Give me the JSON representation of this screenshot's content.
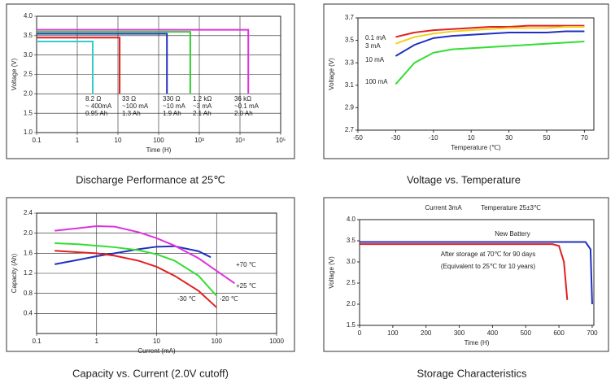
{
  "chart_data": [
    {
      "type": "line",
      "title": "Discharge Performance at 25℃",
      "xlabel": "Time (H)",
      "ylabel": "Voltage (V)",
      "xlog": true,
      "grid": true,
      "xlim": [
        0.1,
        100000
      ],
      "xticks": [
        0.1,
        1,
        10,
        100,
        {
          "value": 1000,
          "label": "10³"
        },
        {
          "value": 10000,
          "label": "10⁴"
        },
        {
          "value": 100000,
          "label": "10⁵"
        }
      ],
      "ylim": [
        1,
        4
      ],
      "yticks": [
        {
          "value": 1,
          "label": "1.0"
        },
        1.5,
        {
          "value": 2,
          "label": "2.0"
        },
        2.5,
        {
          "value": 3,
          "label": "3.0"
        },
        3.5,
        {
          "value": 4,
          "label": "4.0"
        }
      ],
      "series": [
        {
          "color": "#33cccc",
          "x": [
            0.1,
            2.4,
            2.4
          ],
          "values": [
            3.35,
            3.35,
            2.0
          ]
        },
        {
          "color": "#e02020",
          "x": [
            0.1,
            11,
            11
          ],
          "values": [
            3.45,
            3.45,
            2.0
          ]
        },
        {
          "color": "#2030c0",
          "x": [
            0.1,
            160,
            160
          ],
          "values": [
            3.55,
            3.55,
            2.0
          ]
        },
        {
          "color": "#33cc33",
          "x": [
            0.1,
            600,
            600
          ],
          "values": [
            3.6,
            3.6,
            2.0
          ]
        },
        {
          "color": "#dd33dd",
          "x": [
            0.1,
            16000,
            16000
          ],
          "values": [
            3.65,
            3.65,
            2.0
          ]
        }
      ],
      "annotations": [
        [
          "8.2 Ω",
          "~ 400mA",
          "0.95 Ah"
        ],
        [
          "33 Ω",
          "~100 mA",
          "1.3 Ah"
        ],
        [
          "330 Ω",
          "~10 mA",
          "1.9 Ah"
        ],
        [
          "1.2 kΩ",
          "~3 mA",
          "2.1 Ah"
        ],
        [
          "36 kΩ",
          "~0.1 mA",
          "2.0 Ah"
        ]
      ]
    },
    {
      "type": "line",
      "title": "Voltage vs. Temperature",
      "xlabel": "Temperature (℃)",
      "ylabel": "Voltage (V)",
      "grid": false,
      "xlim": [
        -50,
        75
      ],
      "xticks": [
        -50,
        -30,
        -10,
        10,
        30,
        50,
        70
      ],
      "ylim": [
        2.7,
        3.7
      ],
      "yticks": [
        2.7,
        2.9,
        3.1,
        3.3,
        3.5,
        3.7
      ],
      "x": [
        -30,
        -20,
        -10,
        0,
        10,
        20,
        30,
        40,
        50,
        60,
        70
      ],
      "series": [
        {
          "name": "0.1 mA",
          "color": "#e02020",
          "values": [
            3.53,
            3.57,
            3.59,
            3.6,
            3.61,
            3.62,
            3.62,
            3.63,
            3.63,
            3.63,
            3.63
          ]
        },
        {
          "name": "3 mA",
          "color": "#f0d020",
          "values": [
            3.47,
            3.53,
            3.56,
            3.58,
            3.59,
            3.6,
            3.61,
            3.61,
            3.61,
            3.62,
            3.62
          ]
        },
        {
          "name": "10 mA",
          "color": "#2030c0",
          "values": [
            3.36,
            3.46,
            3.52,
            3.54,
            3.55,
            3.56,
            3.57,
            3.57,
            3.57,
            3.58,
            3.58
          ]
        },
        {
          "name": "100 mA",
          "color": "#33dd33",
          "values": [
            3.11,
            3.3,
            3.39,
            3.42,
            3.43,
            3.44,
            3.45,
            3.46,
            3.47,
            3.48,
            3.49
          ]
        }
      ]
    },
    {
      "type": "line",
      "title": "Capacity vs. Current (2.0V cutoff)",
      "xlabel": "Current (mA)",
      "ylabel": "Capacity (Ah)",
      "xlog": true,
      "grid": true,
      "xlim": [
        0.1,
        1000
      ],
      "xticks": [
        0.1,
        1,
        10,
        100,
        1000
      ],
      "ylim": [
        0,
        2.4
      ],
      "yticks": [
        0.4,
        0.8,
        1.2,
        1.6,
        {
          "value": 2,
          "label": "2.0"
        },
        2.4
      ],
      "series": [
        {
          "name": "+70 ℃",
          "color": "#2030c0",
          "x": [
            0.2,
            0.5,
            1,
            2,
            5,
            10,
            20,
            50,
            80
          ],
          "values": [
            1.38,
            1.47,
            1.54,
            1.6,
            1.68,
            1.73,
            1.74,
            1.64,
            1.52
          ]
        },
        {
          "name": "+25 ℃",
          "color": "#dd33dd",
          "x": [
            0.2,
            0.5,
            1,
            2,
            5,
            10,
            20,
            50,
            100,
            200
          ],
          "values": [
            2.05,
            2.1,
            2.14,
            2.13,
            2.02,
            1.9,
            1.75,
            1.5,
            1.25,
            1.0
          ]
        },
        {
          "name": "-20 ℃",
          "color": "#33dd33",
          "x": [
            0.2,
            0.5,
            1,
            2,
            5,
            10,
            20,
            50,
            100
          ],
          "values": [
            1.8,
            1.78,
            1.75,
            1.72,
            1.66,
            1.58,
            1.45,
            1.15,
            0.75
          ]
        },
        {
          "name": "-30 ℃",
          "color": "#e02020",
          "x": [
            0.2,
            0.5,
            1,
            2,
            5,
            10,
            20,
            50,
            100
          ],
          "values": [
            1.65,
            1.62,
            1.6,
            1.55,
            1.45,
            1.33,
            1.15,
            0.85,
            0.52
          ]
        }
      ]
    },
    {
      "type": "line",
      "title": "Storage Characteristics",
      "xlabel": "Time (H)",
      "ylabel": "Voltage (V)",
      "grid": false,
      "xlim": [
        0,
        705
      ],
      "xticks": [
        0,
        100,
        200,
        300,
        400,
        500,
        600,
        700
      ],
      "ylim": [
        1.5,
        4
      ],
      "yticks": [
        1.5,
        {
          "value": 2,
          "label": "2.0"
        },
        2.5,
        {
          "value": 3,
          "label": "3.0"
        },
        3.5,
        {
          "value": 4,
          "label": "4.0"
        }
      ],
      "series": [
        {
          "color": "#2030c0",
          "x": [
            0,
            100,
            200,
            300,
            400,
            500,
            600,
            680,
            695,
            700
          ],
          "values": [
            3.47,
            3.47,
            3.47,
            3.47,
            3.47,
            3.47,
            3.47,
            3.47,
            3.3,
            2.0
          ]
        },
        {
          "color": "#e02020",
          "x": [
            0,
            100,
            200,
            300,
            400,
            500,
            580,
            600,
            615,
            625
          ],
          "values": [
            3.42,
            3.42,
            3.42,
            3.42,
            3.42,
            3.42,
            3.42,
            3.38,
            3.0,
            2.1
          ]
        }
      ],
      "annotations": [
        "Current 3mA",
        "Temperature 25±3℃",
        "New Battery",
        "After storage at 70℃ for 90 days",
        "(Equivalent to 25℃ for 10 years)"
      ]
    }
  ]
}
